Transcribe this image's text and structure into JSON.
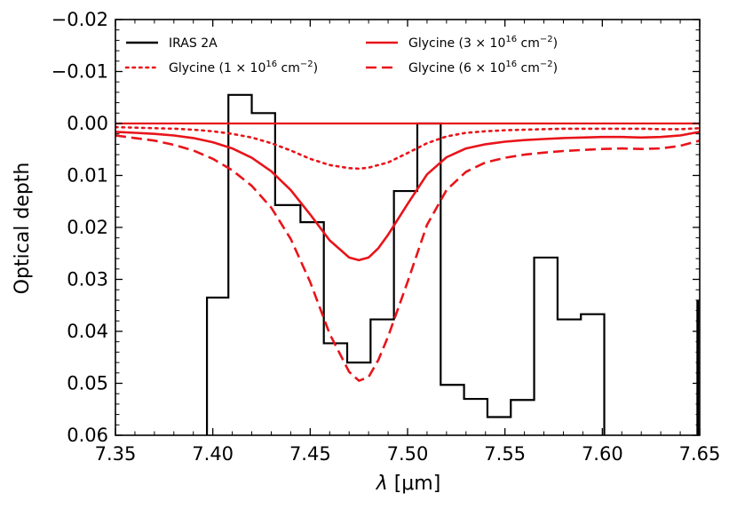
{
  "chart_data": {
    "type": "line",
    "title": "",
    "xlabel_symbol": "λ",
    "xlabel_unit": " [μm]",
    "ylabel": "Optical depth",
    "xlim": [
      7.35,
      7.65
    ],
    "ylim": [
      -0.02,
      0.06
    ],
    "y_inverted": true,
    "xticks": [
      7.35,
      7.4,
      7.45,
      7.5,
      7.55,
      7.6,
      7.65
    ],
    "xtick_labels": [
      "7.35",
      "7.40",
      "7.45",
      "7.50",
      "7.55",
      "7.60",
      "7.65"
    ],
    "yticks": [
      -0.02,
      -0.01,
      0.0,
      0.01,
      0.02,
      0.03,
      0.04,
      0.05,
      0.06
    ],
    "ytick_labels": [
      "−0.02",
      "−0.01",
      "0.00",
      "0.01",
      "0.02",
      "0.03",
      "0.04",
      "0.05",
      "0.06"
    ],
    "legend_position": "top",
    "series": [
      {
        "name": "IRAS 2A",
        "kind": "step",
        "color": "#000000",
        "dash": "solid",
        "bins": [
          {
            "x0": 7.397,
            "x1": 7.408,
            "y": 0.0335
          },
          {
            "x0": 7.408,
            "x1": 7.42,
            "y": -0.0055
          },
          {
            "x0": 7.42,
            "x1": 7.432,
            "y": -0.002
          },
          {
            "x0": 7.432,
            "x1": 7.445,
            "y": 0.0157
          },
          {
            "x0": 7.445,
            "x1": 7.457,
            "y": 0.019
          },
          {
            "x0": 7.457,
            "x1": 7.469,
            "y": 0.0423
          },
          {
            "x0": 7.469,
            "x1": 7.481,
            "y": 0.046
          },
          {
            "x0": 7.481,
            "x1": 7.493,
            "y": 0.0377
          },
          {
            "x0": 7.493,
            "x1": 7.505,
            "y": 0.013
          },
          {
            "x0": 7.505,
            "x1": 7.517,
            "y": 0.0
          },
          {
            "x0": 7.517,
            "x1": 7.529,
            "y": 0.0503
          },
          {
            "x0": 7.529,
            "x1": 7.541,
            "y": 0.053
          },
          {
            "x0": 7.541,
            "x1": 7.553,
            "y": 0.0565
          },
          {
            "x0": 7.553,
            "x1": 7.565,
            "y": 0.0532
          },
          {
            "x0": 7.565,
            "x1": 7.577,
            "y": 0.0258
          },
          {
            "x0": 7.577,
            "x1": 7.589,
            "y": 0.0377
          },
          {
            "x0": 7.589,
            "x1": 7.601,
            "y": 0.0367
          }
        ],
        "edge_drops": [
          {
            "x": 7.397,
            "y": 0.06
          },
          {
            "x": 7.601,
            "y": 0.06
          }
        ],
        "right_edge_segment": {
          "x": 7.649,
          "y0": 0.034,
          "y1": 0.06
        }
      },
      {
        "name": "Glycine (1 × 10¹⁶ cm⁻²)",
        "legend_base": "Glycine (1",
        "legend_sup": "16",
        "legend_unit": " cm",
        "legend_unit_sup": "−2",
        "kind": "line",
        "color": "#e8141a",
        "dash": "dotted",
        "x": [
          7.35,
          7.36,
          7.37,
          7.38,
          7.39,
          7.4,
          7.41,
          7.42,
          7.43,
          7.44,
          7.45,
          7.46,
          7.47,
          7.475,
          7.48,
          7.49,
          7.5,
          7.51,
          7.52,
          7.53,
          7.54,
          7.55,
          7.56,
          7.57,
          7.58,
          7.59,
          7.6,
          7.61,
          7.62,
          7.63,
          7.64,
          7.65
        ],
        "y": [
          0.0007,
          0.0008,
          0.0009,
          0.001,
          0.0012,
          0.0015,
          0.002,
          0.0027,
          0.0038,
          0.0052,
          0.0068,
          0.008,
          0.0086,
          0.0087,
          0.0085,
          0.0075,
          0.0057,
          0.0038,
          0.0025,
          0.0018,
          0.0015,
          0.0013,
          0.0012,
          0.0011,
          0.001,
          0.001,
          0.001,
          0.001,
          0.001,
          0.0011,
          0.0011,
          0.0009
        ]
      },
      {
        "name": "Glycine (3 × 10¹⁶ cm⁻²)",
        "legend_base": "Glycine (3",
        "legend_sup": "16",
        "legend_unit": " cm",
        "legend_unit_sup": "−2",
        "kind": "line",
        "color": "#e8141a",
        "dash": "solid",
        "x": [
          7.35,
          7.36,
          7.37,
          7.38,
          7.39,
          7.4,
          7.41,
          7.42,
          7.43,
          7.44,
          7.45,
          7.46,
          7.47,
          7.475,
          7.48,
          7.485,
          7.49,
          7.5,
          7.51,
          7.52,
          7.53,
          7.54,
          7.55,
          7.56,
          7.57,
          7.58,
          7.59,
          7.6,
          7.61,
          7.62,
          7.63,
          7.64,
          7.65
        ],
        "y": [
          0.0016,
          0.0018,
          0.002,
          0.0023,
          0.0028,
          0.0036,
          0.0048,
          0.0066,
          0.0092,
          0.0128,
          0.0175,
          0.0225,
          0.0258,
          0.0263,
          0.0258,
          0.024,
          0.0214,
          0.0155,
          0.0098,
          0.0065,
          0.0048,
          0.004,
          0.0035,
          0.0032,
          0.003,
          0.0028,
          0.0027,
          0.0026,
          0.0026,
          0.0027,
          0.0026,
          0.0023,
          0.0016
        ]
      },
      {
        "name": "Glycine (6 × 10¹⁶ cm⁻²)",
        "legend_base": "Glycine (6",
        "legend_sup": "16",
        "legend_unit": " cm",
        "legend_unit_sup": "−2",
        "kind": "line",
        "color": "#e8141a",
        "dash": "dashed",
        "x": [
          7.35,
          7.36,
          7.37,
          7.38,
          7.39,
          7.4,
          7.41,
          7.42,
          7.43,
          7.44,
          7.45,
          7.46,
          7.47,
          7.475,
          7.48,
          7.485,
          7.49,
          7.5,
          7.51,
          7.52,
          7.53,
          7.54,
          7.55,
          7.56,
          7.57,
          7.58,
          7.59,
          7.6,
          7.61,
          7.62,
          7.63,
          7.64,
          7.65
        ],
        "y": [
          0.0023,
          0.0028,
          0.0033,
          0.0041,
          0.0052,
          0.0068,
          0.009,
          0.012,
          0.0162,
          0.0222,
          0.0305,
          0.0405,
          0.0478,
          0.0495,
          0.0488,
          0.0455,
          0.041,
          0.0305,
          0.0195,
          0.0128,
          0.0093,
          0.0075,
          0.0066,
          0.006,
          0.0056,
          0.0053,
          0.0051,
          0.0049,
          0.0048,
          0.0049,
          0.0048,
          0.0043,
          0.0033
        ]
      },
      {
        "name": "zero baseline",
        "kind": "hline",
        "color": "#e8141a",
        "dash": "solid",
        "y": 0.0
      }
    ]
  }
}
